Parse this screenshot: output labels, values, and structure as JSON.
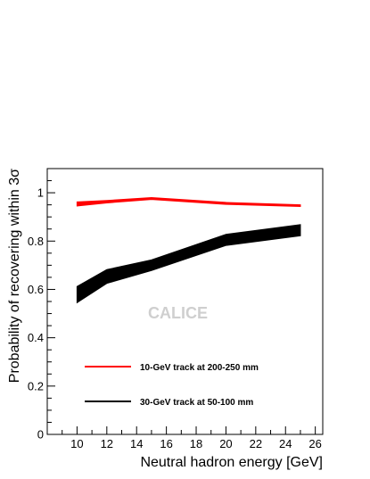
{
  "chart_data": {
    "type": "line",
    "title": "",
    "xlabel": "Neutral hadron energy [GeV]",
    "ylabel": "Probability of recovering within 3σ",
    "xlim": [
      8,
      26.5
    ],
    "ylim": [
      0,
      1.1
    ],
    "x_ticks": [
      10,
      12,
      14,
      16,
      18,
      20,
      22,
      24,
      26
    ],
    "y_ticks": [
      0,
      0.2,
      0.4,
      0.6,
      0.8,
      1
    ],
    "watermark": "CALICE",
    "legend_position": "bottom-left",
    "series": [
      {
        "name": "10-GeV track at 200-250 mm",
        "color": "#ff0000",
        "x": [
          10,
          12,
          15,
          20,
          25
        ],
        "lower": [
          0.945,
          0.958,
          0.972,
          0.952,
          0.943
        ],
        "upper": [
          0.962,
          0.968,
          0.98,
          0.96,
          0.95
        ]
      },
      {
        "name": "30-GeV track at 50-100 mm",
        "color": "#000000",
        "x": [
          10,
          12,
          15,
          20,
          25
        ],
        "lower": [
          0.545,
          0.625,
          0.678,
          0.782,
          0.822
        ],
        "upper": [
          0.612,
          0.682,
          0.722,
          0.828,
          0.868
        ]
      }
    ]
  }
}
